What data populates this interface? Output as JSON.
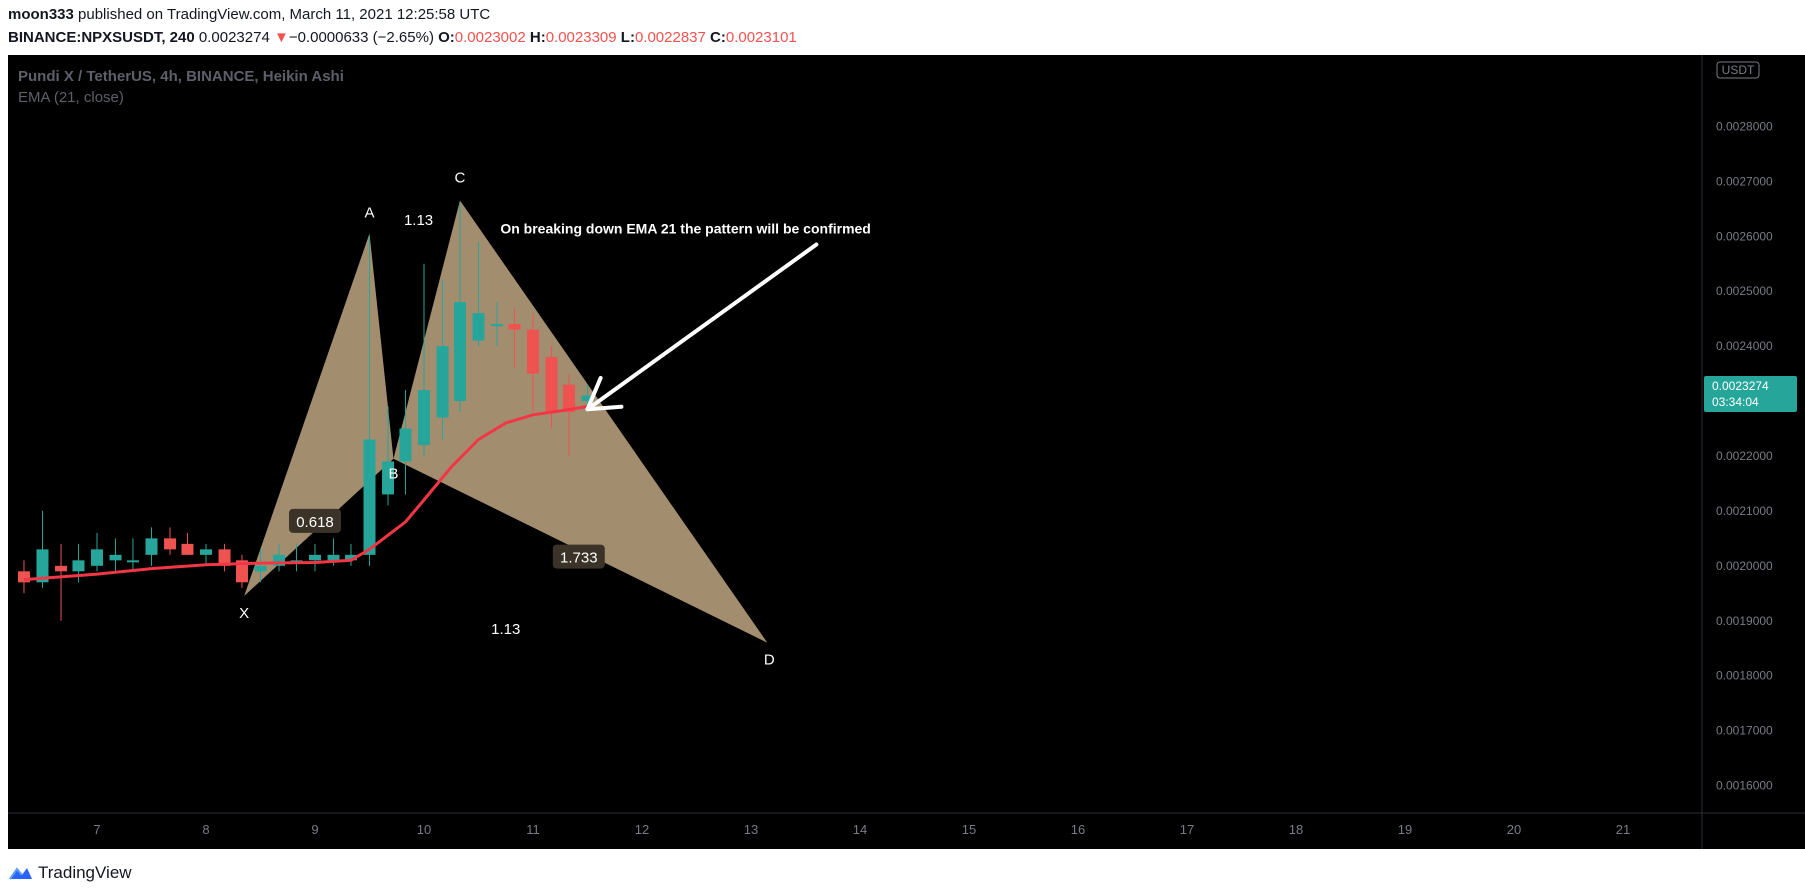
{
  "header": {
    "author": "moon333",
    "published_text": "published on TradingView.com, March 11, 2021 12:25:58 UTC",
    "symbol": "BINANCE:NPXSUSDT, 240",
    "last_price": "0.0023274",
    "change_arrow": "▼",
    "change": "−0.0000633 (−2.65%)",
    "o_label": "O:",
    "o_value": "0.0023002",
    "h_label": "H:",
    "h_value": "0.0023309",
    "l_label": "L:",
    "l_value": "0.0022837",
    "c_label": "C:",
    "c_value": "0.0023101"
  },
  "footer": {
    "brand": "TradingView"
  },
  "colors": {
    "up": "#26a69a",
    "down": "#ef5350",
    "ema": "#f23645",
    "pattern_fill": "#c7ac87",
    "axis_text": "#787b86",
    "price_badge": "#26a69a"
  },
  "chart_data": {
    "type": "candlestick",
    "legend_title": "Pundi X / TetherUS, 4h, BINANCE, Heikin Ashi",
    "legend_indicator": "EMA (21, close)",
    "currency_badge": "USDT",
    "y_ticks": [
      "0.0028000",
      "0.0027000",
      "0.0026000",
      "0.0025000",
      "0.0024000",
      "0.0023000",
      "0.0022000",
      "0.0021000",
      "0.0020000",
      "0.0019000",
      "0.0018000",
      "0.0017000",
      "0.0016000"
    ],
    "y_tick_values": [
      0.0028,
      0.0027,
      0.0026,
      0.0025,
      0.0024,
      0.0023,
      0.0022,
      0.0021,
      0.002,
      0.0019,
      0.0018,
      0.0017,
      0.0016
    ],
    "ylim": [
      0.00155,
      0.00293
    ],
    "x_ticks": [
      "7",
      "8",
      "9",
      "10",
      "11",
      "12",
      "13",
      "14",
      "15",
      "16",
      "17",
      "18",
      "19",
      "20",
      "21"
    ],
    "x_tick_days": [
      7,
      8,
      9,
      10,
      11,
      12,
      13,
      14,
      15,
      16,
      17,
      18,
      19,
      20,
      21
    ],
    "xlim_days": [
      6.18,
      21.88
    ],
    "price_label": "0.0023274",
    "countdown": "03:34:04",
    "price_value": 0.0023274,
    "candles": [
      {
        "t": 6.33,
        "o": 0.00199,
        "h": 0.00201,
        "l": 0.00195,
        "c": 0.00197
      },
      {
        "t": 6.5,
        "o": 0.00197,
        "h": 0.0021,
        "l": 0.00196,
        "c": 0.00203
      },
      {
        "t": 6.67,
        "o": 0.002,
        "h": 0.00204,
        "l": 0.0019,
        "c": 0.00199
      },
      {
        "t": 6.83,
        "o": 0.00199,
        "h": 0.00204,
        "l": 0.00197,
        "c": 0.00201
      },
      {
        "t": 7.0,
        "o": 0.002,
        "h": 0.00206,
        "l": 0.00199,
        "c": 0.00203
      },
      {
        "t": 7.17,
        "o": 0.00201,
        "h": 0.00205,
        "l": 0.00199,
        "c": 0.00202
      },
      {
        "t": 7.33,
        "o": 0.00201,
        "h": 0.00205,
        "l": 0.00199,
        "c": 0.00201
      },
      {
        "t": 7.5,
        "o": 0.00202,
        "h": 0.00207,
        "l": 0.002,
        "c": 0.00205
      },
      {
        "t": 7.67,
        "o": 0.00205,
        "h": 0.00207,
        "l": 0.00202,
        "c": 0.00203
      },
      {
        "t": 7.83,
        "o": 0.00204,
        "h": 0.00206,
        "l": 0.00202,
        "c": 0.00202
      },
      {
        "t": 8.0,
        "o": 0.00202,
        "h": 0.00204,
        "l": 0.002,
        "c": 0.00203
      },
      {
        "t": 8.17,
        "o": 0.00203,
        "h": 0.00204,
        "l": 0.00199,
        "c": 0.002
      },
      {
        "t": 8.33,
        "o": 0.00201,
        "h": 0.00202,
        "l": 0.00196,
        "c": 0.00197
      },
      {
        "t": 8.5,
        "o": 0.00199,
        "h": 0.00203,
        "l": 0.00197,
        "c": 0.002
      },
      {
        "t": 8.67,
        "o": 0.002,
        "h": 0.00204,
        "l": 0.00199,
        "c": 0.00202
      },
      {
        "t": 8.83,
        "o": 0.00201,
        "h": 0.00204,
        "l": 0.00199,
        "c": 0.00201
      },
      {
        "t": 9.0,
        "o": 0.00201,
        "h": 0.00204,
        "l": 0.00199,
        "c": 0.00202
      },
      {
        "t": 9.17,
        "o": 0.00201,
        "h": 0.00205,
        "l": 0.002,
        "c": 0.00202
      },
      {
        "t": 9.33,
        "o": 0.00201,
        "h": 0.00204,
        "l": 0.002,
        "c": 0.00202
      },
      {
        "t": 9.5,
        "o": 0.00202,
        "h": 0.0026,
        "l": 0.002,
        "c": 0.00223
      },
      {
        "t": 9.67,
        "o": 0.00213,
        "h": 0.00229,
        "l": 0.00211,
        "c": 0.00219
      },
      {
        "t": 9.83,
        "o": 0.00219,
        "h": 0.00232,
        "l": 0.00213,
        "c": 0.00225
      },
      {
        "t": 10.0,
        "o": 0.00222,
        "h": 0.00255,
        "l": 0.0022,
        "c": 0.00232
      },
      {
        "t": 10.17,
        "o": 0.00227,
        "h": 0.00252,
        "l": 0.00223,
        "c": 0.0024
      },
      {
        "t": 10.33,
        "o": 0.0023,
        "h": 0.00266,
        "l": 0.00228,
        "c": 0.00248
      },
      {
        "t": 10.5,
        "o": 0.00241,
        "h": 0.00259,
        "l": 0.0024,
        "c": 0.00246
      },
      {
        "t": 10.67,
        "o": 0.00244,
        "h": 0.00248,
        "l": 0.0024,
        "c": 0.00244
      },
      {
        "t": 10.83,
        "o": 0.00244,
        "h": 0.00247,
        "l": 0.00236,
        "c": 0.00243
      },
      {
        "t": 11.0,
        "o": 0.00243,
        "h": 0.00246,
        "l": 0.00228,
        "c": 0.00235
      },
      {
        "t": 11.17,
        "o": 0.00238,
        "h": 0.0024,
        "l": 0.00225,
        "c": 0.00228
      },
      {
        "t": 11.33,
        "o": 0.00233,
        "h": 0.00235,
        "l": 0.0022,
        "c": 0.00228
      },
      {
        "t": 11.5,
        "o": 0.0023,
        "h": 0.00233,
        "l": 0.00228,
        "c": 0.00231
      }
    ],
    "ema": [
      {
        "t": 6.33,
        "v": 0.001975
      },
      {
        "t": 7.0,
        "v": 0.001985
      },
      {
        "t": 7.5,
        "v": 0.001995
      },
      {
        "t": 8.0,
        "v": 0.002002
      },
      {
        "t": 8.5,
        "v": 0.002005
      },
      {
        "t": 9.0,
        "v": 0.002006
      },
      {
        "t": 9.33,
        "v": 0.00201
      },
      {
        "t": 9.5,
        "v": 0.00203
      },
      {
        "t": 9.83,
        "v": 0.00208
      },
      {
        "t": 10.0,
        "v": 0.00212
      },
      {
        "t": 10.25,
        "v": 0.00218
      },
      {
        "t": 10.5,
        "v": 0.00223
      },
      {
        "t": 10.75,
        "v": 0.00226
      },
      {
        "t": 11.0,
        "v": 0.002275
      },
      {
        "t": 11.25,
        "v": 0.002282
      },
      {
        "t": 11.5,
        "v": 0.00229
      }
    ],
    "pattern": {
      "points": [
        {
          "label": "X",
          "t": 8.35,
          "p": 0.001945
        },
        {
          "label": "A",
          "t": 9.5,
          "p": 0.002605
        },
        {
          "label": "B",
          "t": 9.72,
          "p": 0.002195
        },
        {
          "label": "C",
          "t": 10.33,
          "p": 0.002665
        },
        {
          "label": "D",
          "t": 13.15,
          "p": 0.00186
        }
      ],
      "ratios": [
        {
          "text": "0.618",
          "t": 9.0,
          "p": 0.00208,
          "boxed": true
        },
        {
          "text": "1.13",
          "t": 9.95,
          "p": 0.00263,
          "boxed": false
        },
        {
          "text": "1.733",
          "t": 11.42,
          "p": 0.002015,
          "boxed": true
        },
        {
          "text": "1.13",
          "t": 10.75,
          "p": 0.001885,
          "boxed": false
        }
      ]
    },
    "annotation": {
      "text": "On breaking down EMA 21 the pattern will be confirmed",
      "text_t": 12.4,
      "text_p": 0.002605,
      "arrow_from_t": 13.6,
      "arrow_from_p": 0.002585,
      "arrow_to_t": 11.5,
      "arrow_to_p": 0.002285
    }
  }
}
